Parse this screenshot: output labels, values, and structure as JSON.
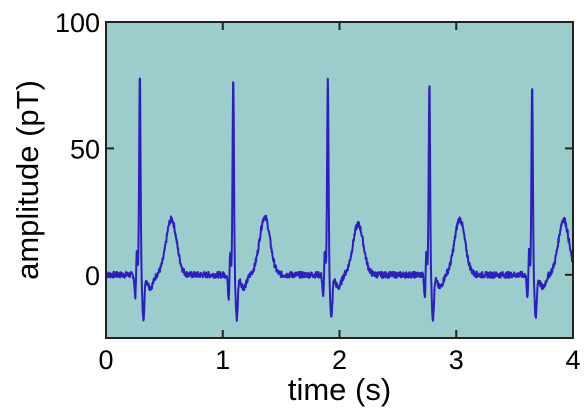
{
  "chart_data": {
    "type": "line",
    "title": "",
    "xlabel": "time (s)",
    "ylabel": "amplitude (pT)",
    "xlim": [
      0,
      4
    ],
    "ylim": [
      -25,
      100
    ],
    "x_ticks": [
      0,
      1,
      2,
      3,
      4
    ],
    "x_tick_labels": [
      "0",
      "1",
      "2",
      "3",
      "4"
    ],
    "y_ticks": [
      0,
      50,
      100
    ],
    "y_tick_labels": [
      "0",
      "50",
      "100"
    ],
    "grid": false,
    "legend": "none",
    "colors": {
      "plot_background": "#9ccccc",
      "line": "#2d1fbf",
      "frame": "#222222"
    },
    "baseline": 0,
    "beats": [
      {
        "r_time": 0.29,
        "r_peak": 79,
        "t_time": 0.56,
        "t_peak": 22
      },
      {
        "r_time": 1.09,
        "r_peak": 78,
        "t_time": 1.36,
        "t_peak": 23
      },
      {
        "r_time": 1.9,
        "r_peak": 78,
        "t_time": 2.16,
        "t_peak": 20
      },
      {
        "r_time": 2.77,
        "r_peak": 76,
        "t_time": 3.03,
        "t_peak": 22
      },
      {
        "r_time": 3.65,
        "r_peak": 76,
        "t_time": 3.92,
        "t_peak": 22
      }
    ]
  }
}
